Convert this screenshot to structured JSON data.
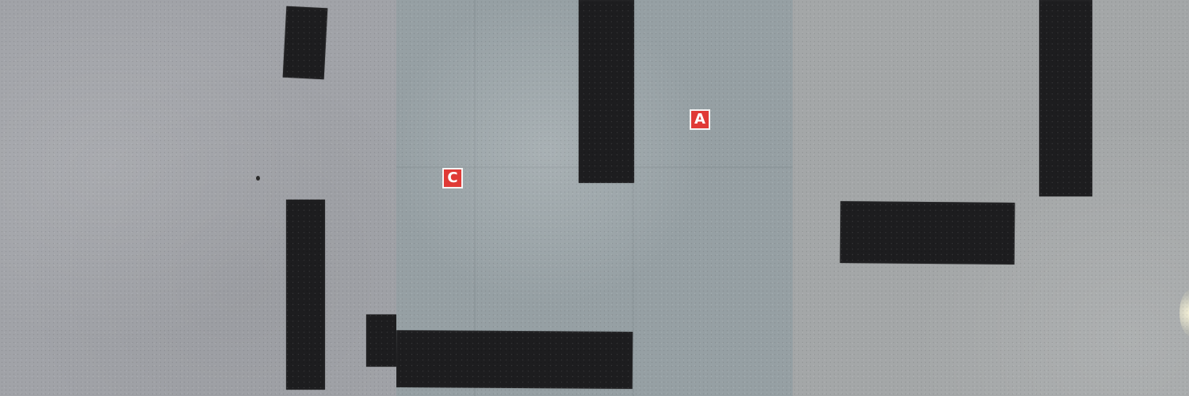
{
  "image": {
    "panels": [
      {
        "name": "left",
        "floor_color": "#a1a3a8",
        "tape_color": "#1d1d1f"
      },
      {
        "name": "middle",
        "floor_color": "#96a0a4",
        "tape_color": "#1d1d1f",
        "markers": [
          {
            "label": "A",
            "color": "#e03a36"
          },
          {
            "label": "C",
            "color": "#e03a36"
          }
        ]
      },
      {
        "name": "right",
        "floor_color": "#a4a7a8",
        "tape_color": "#1d1d1f"
      }
    ]
  }
}
